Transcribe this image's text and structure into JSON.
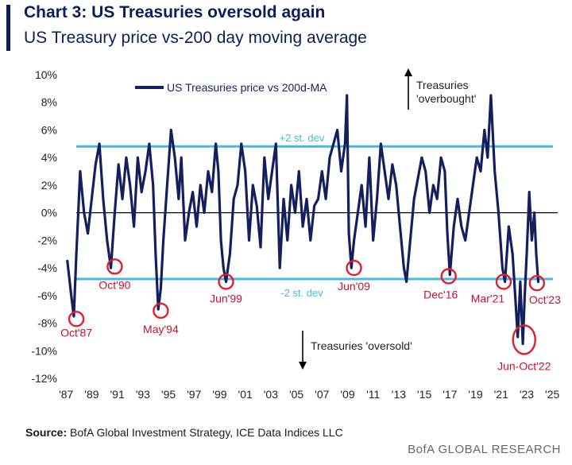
{
  "header": {
    "title": "Chart 3: US Treasuries oversold again",
    "subtitle": "US Treasury price vs-200 day moving average"
  },
  "footer": {
    "source_label": "Source:",
    "source_text": "BofA Global Investment Strategy, ICE Data Indices LLC",
    "brand": "BofA GLOBAL RESEARCH"
  },
  "colors": {
    "series": "#14205e",
    "band": "#4ab8e0",
    "zero": "#000000",
    "marker": "#e01e2e",
    "label": "#c8102e"
  },
  "chart_data": {
    "type": "line",
    "title": "Chart 3: US Treasuries oversold again",
    "subtitle": "US Treasury price vs-200 day moving average",
    "ylim": [
      -12,
      10
    ],
    "xlim": [
      1986.8,
      2025.3
    ],
    "y_ticks": [
      "10%",
      "8%",
      "6%",
      "4%",
      "2%",
      "0%",
      "-2%",
      "-4%",
      "-6%",
      "-8%",
      "-10%",
      "-12%"
    ],
    "y_tick_values": [
      10,
      8,
      6,
      4,
      2,
      0,
      -2,
      -4,
      -6,
      -8,
      -10,
      -12
    ],
    "x_ticks": [
      "'87",
      "'89",
      "'91",
      "'93",
      "'95",
      "'97",
      "'99",
      "'01",
      "'03",
      "'05",
      "'07",
      "'09",
      "'11",
      "'13",
      "'15",
      "'17",
      "'19",
      "'21",
      "'23",
      "'25"
    ],
    "x_tick_values": [
      1987,
      1989,
      1991,
      1993,
      1995,
      1997,
      1999,
      2001,
      2003,
      2005,
      2007,
      2009,
      2011,
      2013,
      2015,
      2017,
      2019,
      2021,
      2023,
      2025
    ],
    "legend": "US Treasuries price vs 200d-MA",
    "legend_position": "top-center",
    "grid": false,
    "series": [
      {
        "name": "US Treasuries price vs 200d-MA",
        "x": [
          1987.1,
          1987.4,
          1987.6,
          1987.8,
          1988.1,
          1988.4,
          1988.7,
          1989.0,
          1989.3,
          1989.6,
          1989.9,
          1990.2,
          1990.5,
          1990.8,
          1991.1,
          1991.4,
          1991.7,
          1992.0,
          1992.3,
          1992.6,
          1992.9,
          1993.2,
          1993.5,
          1993.8,
          1994.0,
          1994.2,
          1994.4,
          1994.6,
          1994.9,
          1995.2,
          1995.5,
          1995.8,
          1996.0,
          1996.3,
          1996.6,
          1996.9,
          1997.2,
          1997.5,
          1997.8,
          1998.1,
          1998.4,
          1998.7,
          1998.9,
          1999.1,
          1999.3,
          1999.5,
          1999.8,
          2000.1,
          2000.4,
          2000.7,
          2001.0,
          2001.3,
          2001.6,
          2001.9,
          2002.2,
          2002.5,
          2002.8,
          2003.1,
          2003.4,
          2003.7,
          2004.0,
          2004.3,
          2004.6,
          2004.9,
          2005.2,
          2005.5,
          2005.8,
          2006.1,
          2006.4,
          2006.7,
          2007.0,
          2007.3,
          2007.6,
          2007.9,
          2008.2,
          2008.5,
          2008.8,
          2008.95,
          2009.1,
          2009.3,
          2009.5,
          2009.8,
          2010.1,
          2010.4,
          2010.7,
          2011.0,
          2011.3,
          2011.6,
          2011.9,
          2012.2,
          2012.5,
          2012.8,
          2013.1,
          2013.4,
          2013.6,
          2013.9,
          2014.2,
          2014.5,
          2014.8,
          2015.1,
          2015.4,
          2015.7,
          2016.0,
          2016.3,
          2016.6,
          2016.8,
          2017.0,
          2017.3,
          2017.6,
          2017.9,
          2018.2,
          2018.5,
          2018.8,
          2019.1,
          2019.4,
          2019.7,
          2019.95,
          2020.2,
          2020.5,
          2020.8,
          2021.1,
          2021.3,
          2021.6,
          2021.9,
          2022.1,
          2022.3,
          2022.5,
          2022.7,
          2022.85,
          2023.0,
          2023.2,
          2023.4,
          2023.6,
          2023.75,
          2023.9
        ],
        "values": [
          -3.5,
          -6.0,
          -7.5,
          -3.0,
          3.0,
          0.0,
          -1.5,
          1.0,
          3.5,
          5.0,
          1.0,
          -2.0,
          -4.0,
          0.0,
          3.5,
          1.0,
          4.0,
          2.0,
          -1.0,
          4.0,
          1.5,
          3.0,
          5.0,
          2.0,
          -3.0,
          -7.0,
          -5.5,
          -2.0,
          2.0,
          6.0,
          4.0,
          1.0,
          4.0,
          -2.0,
          0.0,
          1.5,
          -1.0,
          2.0,
          0.0,
          3.0,
          1.5,
          5.0,
          3.0,
          -2.0,
          -4.0,
          -5.0,
          -3.0,
          1.0,
          2.0,
          5.0,
          3.0,
          -2.0,
          2.0,
          0.5,
          -2.5,
          4.0,
          1.0,
          3.0,
          5.0,
          -4.0,
          1.0,
          -2.0,
          2.0,
          0.0,
          3.0,
          -1.0,
          1.0,
          -2.0,
          0.5,
          1.0,
          3.0,
          1.0,
          4.0,
          5.0,
          6.0,
          3.0,
          5.0,
          8.5,
          -1.5,
          -4.0,
          -2.0,
          0.0,
          2.0,
          -1.0,
          4.0,
          -2.0,
          1.0,
          5.0,
          3.0,
          1.0,
          3.5,
          2.0,
          -1.0,
          -4.0,
          -5.0,
          -2.0,
          1.0,
          2.5,
          4.0,
          3.0,
          0.0,
          2.0,
          1.0,
          4.0,
          3.0,
          -1.5,
          -4.5,
          -1.0,
          1.0,
          -1.0,
          -2.0,
          0.0,
          2.0,
          4.0,
          3.0,
          6.0,
          4.0,
          8.5,
          3.0,
          0.0,
          -4.0,
          -5.0,
          -1.0,
          -3.0,
          -6.0,
          -9.0,
          -5.0,
          -9.5,
          -6.0,
          -3.0,
          1.5,
          -2.0,
          0.0,
          -3.0,
          -5.0
        ]
      }
    ],
    "reference_lines": [
      {
        "label": "+2 st. dev",
        "value": 4.8
      },
      {
        "label": "-2 st. dev",
        "value": -4.8
      }
    ],
    "annotations": [
      {
        "label": "Oct'87",
        "x": 1987.8,
        "y": -7.7
      },
      {
        "label": "Oct'90",
        "x": 1990.8,
        "y": -3.9
      },
      {
        "label": "May'94",
        "x": 1994.4,
        "y": -7.1
      },
      {
        "label": "Jun'99",
        "x": 1999.5,
        "y": -5.0
      },
      {
        "label": "Jun'09",
        "x": 2009.5,
        "y": -4.0
      },
      {
        "label": "Dec'16",
        "x": 2016.9,
        "y": -4.6
      },
      {
        "label": "Mar'21",
        "x": 2021.2,
        "y": -5.0
      },
      {
        "label": "Jun-Oct'22",
        "x": 2022.8,
        "y": -9.2
      },
      {
        "label": "Oct'23",
        "x": 2023.8,
        "y": -5.1
      }
    ],
    "notes": [
      {
        "label": "Treasuries\n'overbought'",
        "direction": "up"
      },
      {
        "label": "Treasuries 'oversold'",
        "direction": "down"
      }
    ]
  }
}
